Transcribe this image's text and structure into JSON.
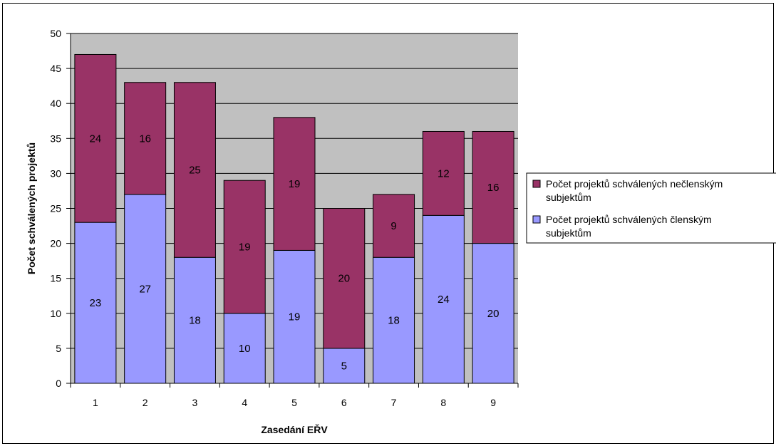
{
  "chart_data": {
    "type": "bar",
    "stacked": true,
    "title": "",
    "xlabel": "Zasedání EŘV",
    "ylabel": "Počet schválených projektů",
    "categories": [
      "1",
      "2",
      "3",
      "4",
      "5",
      "6",
      "7",
      "8",
      "9"
    ],
    "ylim": [
      0,
      50
    ],
    "yticks": [
      0,
      5,
      10,
      15,
      20,
      25,
      30,
      35,
      40,
      45,
      50
    ],
    "grid": true,
    "legend_position": "right",
    "series": [
      {
        "name": "Počet projektů schválených členským subjektům",
        "legend_lines": [
          "Počet projektů schválených členským",
          "subjektům"
        ],
        "color": "#9999FF",
        "values": [
          23,
          27,
          18,
          10,
          19,
          5,
          18,
          24,
          20
        ]
      },
      {
        "name": "Počet projektů schválených nečlenským subjektům",
        "legend_lines": [
          "Počet projektů schválených nečlenským",
          "subjektům"
        ],
        "color": "#993366",
        "values": [
          24,
          16,
          25,
          19,
          19,
          20,
          9,
          12,
          16
        ]
      }
    ],
    "plot_background": "#C0C0C0"
  }
}
